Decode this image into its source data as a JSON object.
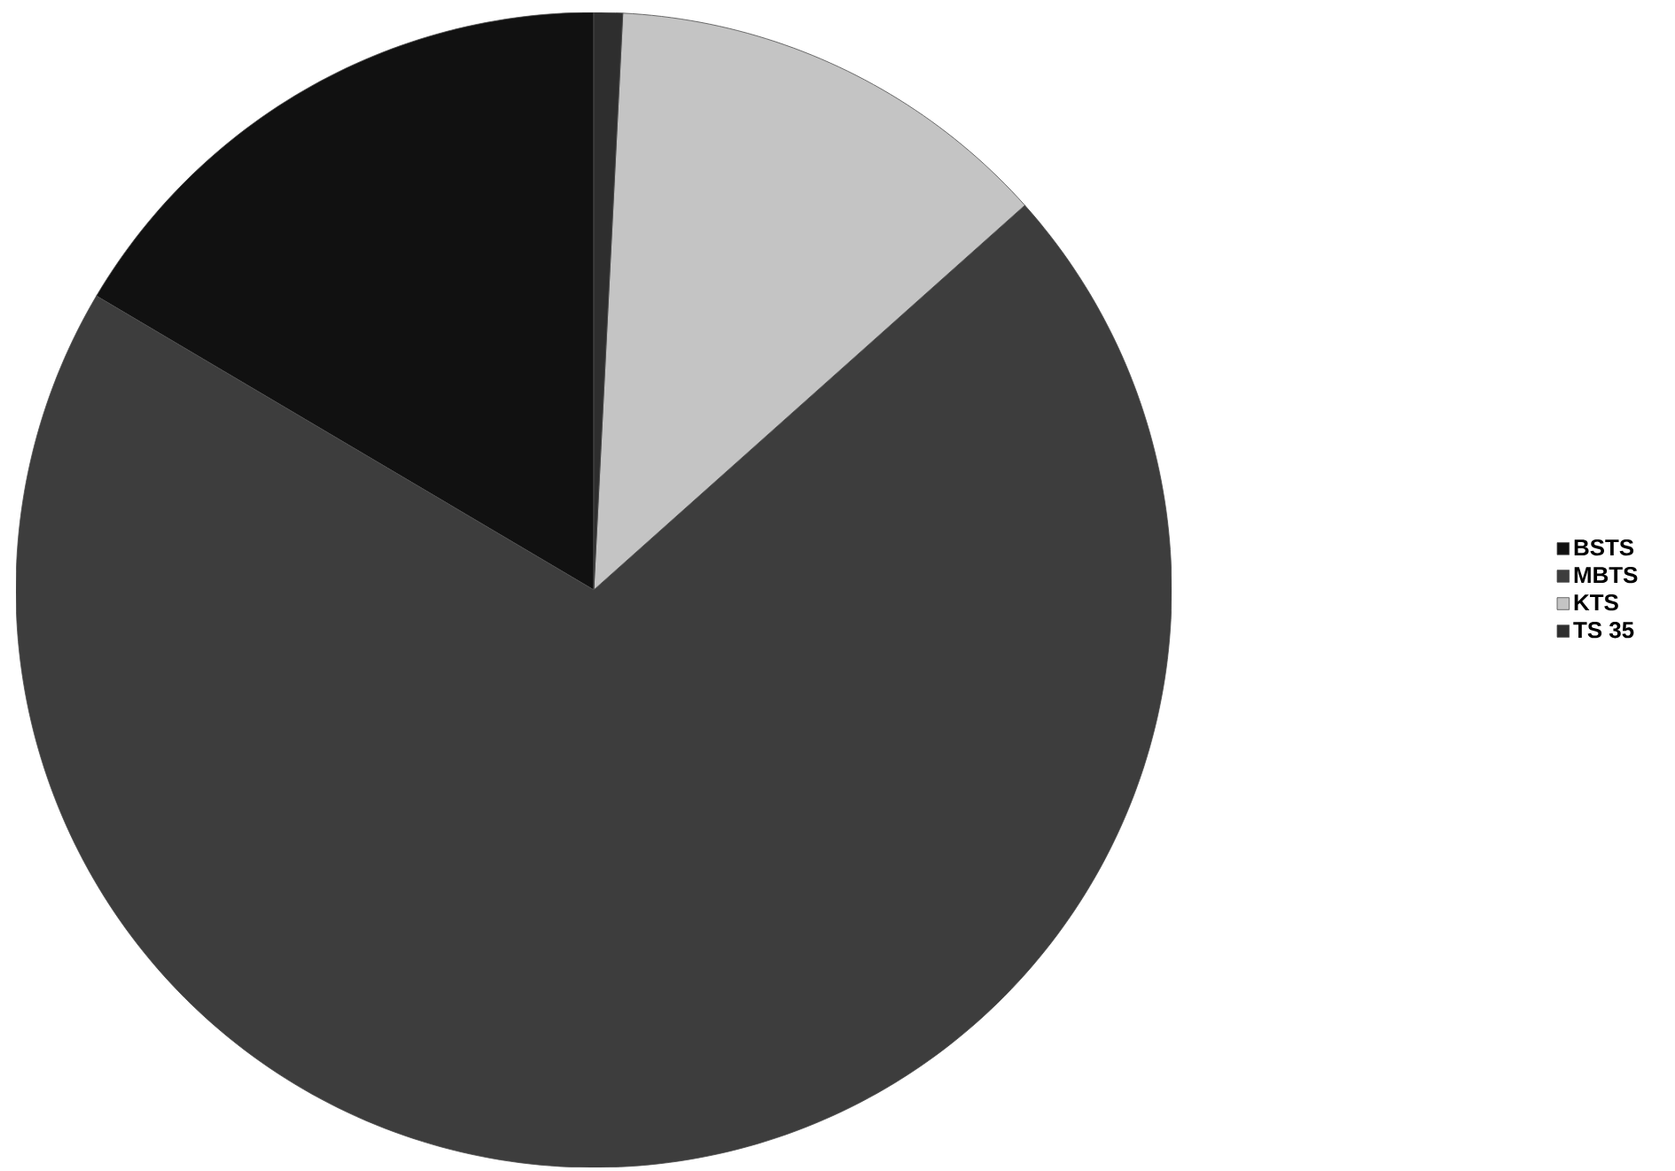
{
  "chart_data": {
    "type": "pie",
    "categories": [
      "BSTS",
      "MBTS",
      "KTS",
      "TS 35"
    ],
    "values": [
      16.5,
      70.1,
      12.6,
      0.8
    ],
    "colors": [
      "#111111",
      "#3d3d3d",
      "#c4c4c4",
      "#2e2e2e"
    ],
    "legend": "right"
  }
}
